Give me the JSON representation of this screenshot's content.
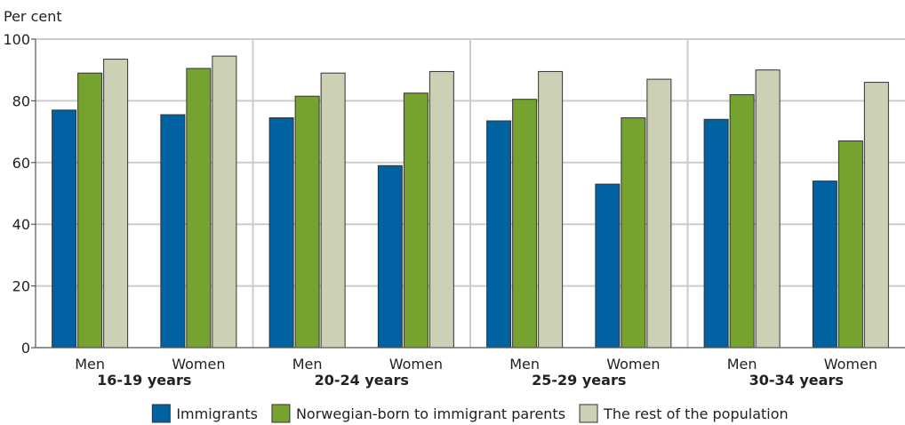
{
  "chart_data": {
    "type": "bar",
    "ylabel": "Per cent",
    "ylim": [
      0,
      100
    ],
    "yticks": [
      0,
      20,
      40,
      60,
      80,
      100
    ],
    "grid": true,
    "legend_position": "bottom",
    "groups": [
      "16-19 years",
      "20-24 years",
      "25-29 years",
      "30-34 years"
    ],
    "subcategories": [
      "Men",
      "Women"
    ],
    "series": [
      {
        "name": "Immigrants",
        "color": "#0062a1",
        "values": [
          77,
          75.5,
          74.5,
          59,
          73.5,
          53,
          74,
          54
        ]
      },
      {
        "name": "Norwegian-born to immigrant parents",
        "color": "#76a22f",
        "values": [
          89,
          90.5,
          81.5,
          82.5,
          80.5,
          74.5,
          82,
          67
        ]
      },
      {
        "name": "The rest of the population",
        "color": "#ccd0b5",
        "values": [
          93.5,
          94.5,
          89,
          89.5,
          89.5,
          87,
          90,
          86
        ]
      }
    ]
  }
}
